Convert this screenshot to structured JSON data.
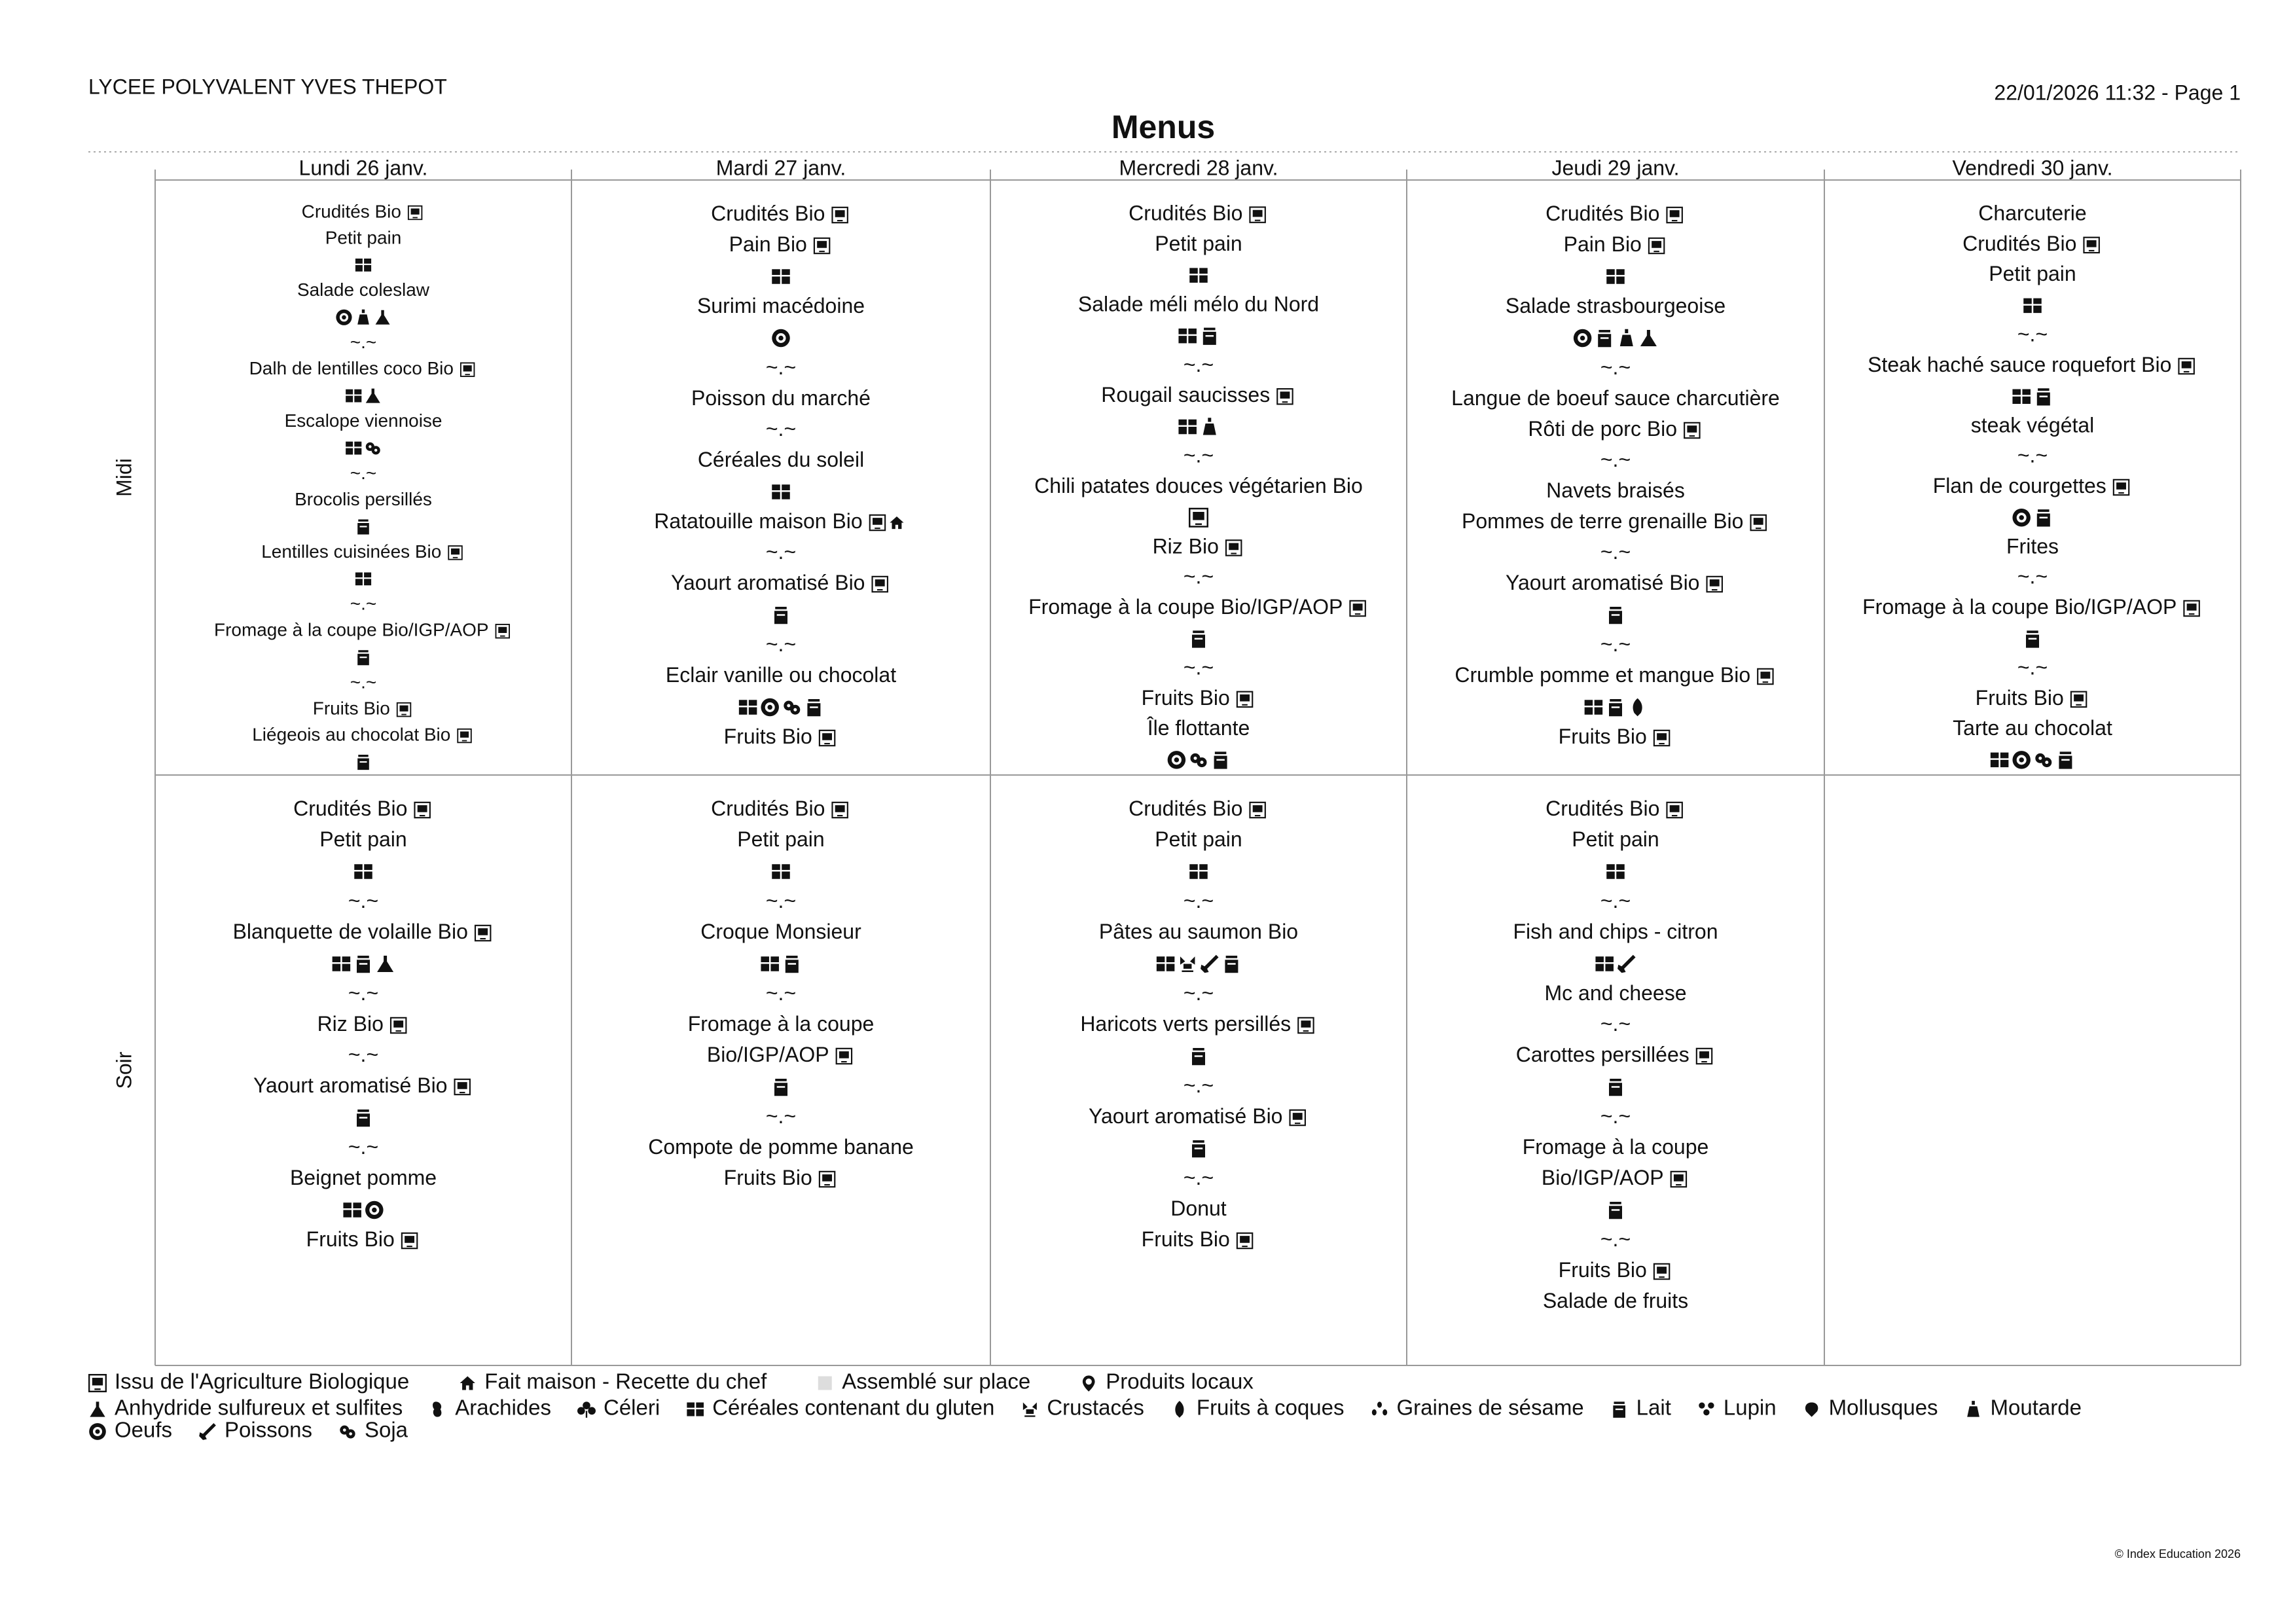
{
  "header": {
    "school": "LYCEE POLYVALENT YVES THEPOT",
    "date": "22/01/2026 11:32 - Page 1"
  },
  "title": "Menus",
  "days": [
    "Lundi 26 janv.",
    "Mardi 27 janv.",
    "Mercredi 28 janv.",
    "Jeudi 29 janv.",
    "Vendredi 30 janv."
  ],
  "meals": [
    {
      "label": "Midi",
      "cells": [
        [
          {
            "text": "Crudités Bio",
            "tags": [
              "bio"
            ]
          },
          "Petit pain",
          [
            "gluten"
          ],
          "Salade coleslaw",
          [
            "oeufs",
            "moutarde",
            "sulfites"
          ],
          "~.~",
          {
            "text": "Dalh de lentilles coco Bio",
            "tags": [
              "bio"
            ]
          },
          [
            "gluten",
            "sulfites"
          ],
          "Escalope viennoise",
          [
            "gluten",
            "soja"
          ],
          "~.~",
          "Brocolis persillés",
          [
            "lait"
          ],
          {
            "text": "Lentilles cuisinées Bio",
            "tags": [
              "bio"
            ]
          },
          [
            "gluten"
          ],
          "~.~",
          {
            "text": "Fromage à la coupe Bio/IGP/AOP",
            "tags": [
              "bio"
            ]
          },
          [
            "lait"
          ],
          "~.~",
          {
            "text": "Fruits Bio",
            "tags": [
              "bio"
            ]
          },
          {
            "text": "Liégeois au chocolat Bio",
            "tags": [
              "bio"
            ]
          },
          [
            "lait"
          ]
        ],
        [
          {
            "text": "Crudités Bio",
            "tags": [
              "bio"
            ]
          },
          {
            "text": "Pain Bio",
            "tags": [
              "bio"
            ]
          },
          [
            "gluten"
          ],
          "Surimi macédoine",
          [
            "oeufs"
          ],
          "~.~",
          "Poisson du marché",
          "~.~",
          "Céréales du soleil",
          [
            "gluten"
          ],
          {
            "text": "Ratatouille maison Bio",
            "tags": [
              "bio",
              "maison"
            ]
          },
          "~.~",
          {
            "text": "Yaourt aromatisé Bio",
            "tags": [
              "bio"
            ]
          },
          [
            "lait"
          ],
          "~.~",
          "Eclair vanille ou chocolat",
          [
            "gluten",
            "oeufs",
            "soja",
            "lait"
          ],
          {
            "text": "Fruits Bio",
            "tags": [
              "bio"
            ]
          }
        ],
        [
          {
            "text": "Crudités Bio",
            "tags": [
              "bio"
            ]
          },
          "Petit pain",
          [
            "gluten"
          ],
          "Salade méli mélo du Nord",
          [
            "gluten",
            "lait"
          ],
          "~.~",
          {
            "text": "Rougail saucisses",
            "tags": [
              "bio"
            ]
          },
          [
            "gluten",
            "moutarde"
          ],
          "~.~",
          "Chili patates douces végétarien Bio",
          [
            "bio"
          ],
          {
            "text": "Riz Bio",
            "tags": [
              "bio"
            ]
          },
          "~.~",
          {
            "text": "Fromage à la coupe Bio/IGP/AOP",
            "tags": [
              "bio"
            ]
          },
          [
            "lait"
          ],
          "~.~",
          {
            "text": "Fruits Bio",
            "tags": [
              "bio"
            ]
          },
          "Île flottante",
          [
            "oeufs",
            "soja",
            "lait"
          ]
        ],
        [
          {
            "text": "Crudités Bio",
            "tags": [
              "bio"
            ]
          },
          {
            "text": "Pain Bio",
            "tags": [
              "bio"
            ]
          },
          [
            "gluten"
          ],
          "Salade strasbourgeoise",
          [
            "oeufs",
            "lait",
            "moutarde",
            "sulfites"
          ],
          "~.~",
          "Langue de boeuf sauce charcutière",
          {
            "text": "Rôti de porc Bio",
            "tags": [
              "bio"
            ]
          },
          "~.~",
          "Navets braisés",
          {
            "text": "Pommes de terre grenaille Bio",
            "tags": [
              "bio"
            ]
          },
          "~.~",
          {
            "text": "Yaourt aromatisé Bio",
            "tags": [
              "bio"
            ]
          },
          [
            "lait"
          ],
          "~.~",
          {
            "text": "Crumble pomme et mangue Bio",
            "tags": [
              "bio"
            ]
          },
          [
            "gluten",
            "lait",
            "fruitscoques"
          ],
          {
            "text": "Fruits Bio",
            "tags": [
              "bio"
            ]
          }
        ],
        [
          "Charcuterie",
          {
            "text": "Crudités Bio",
            "tags": [
              "bio"
            ]
          },
          "Petit pain",
          [
            "gluten"
          ],
          "~.~",
          {
            "text": "Steak haché sauce roquefort Bio",
            "tags": [
              "bio"
            ]
          },
          [
            "gluten",
            "lait"
          ],
          "steak végétal",
          "~.~",
          {
            "text": "Flan de courgettes",
            "tags": [
              "bio"
            ]
          },
          [
            "oeufs",
            "lait"
          ],
          "Frites",
          "~.~",
          {
            "text": "Fromage à la coupe Bio/IGP/AOP",
            "tags": [
              "bio"
            ]
          },
          [
            "lait"
          ],
          "~.~",
          {
            "text": "Fruits Bio",
            "tags": [
              "bio"
            ]
          },
          "Tarte au chocolat",
          [
            "gluten",
            "oeufs",
            "soja",
            "lait"
          ]
        ]
      ]
    },
    {
      "label": "Soir",
      "cells": [
        [
          {
            "text": "Crudités Bio",
            "tags": [
              "bio"
            ]
          },
          "Petit pain",
          [
            "gluten"
          ],
          "~.~",
          {
            "text": "Blanquette de volaille Bio",
            "tags": [
              "bio"
            ]
          },
          [
            "gluten",
            "lait",
            "sulfites"
          ],
          "~.~",
          {
            "text": "Riz Bio",
            "tags": [
              "bio"
            ]
          },
          "~.~",
          {
            "text": "Yaourt aromatisé Bio",
            "tags": [
              "bio"
            ]
          },
          [
            "lait"
          ],
          "~.~",
          "Beignet pomme",
          [
            "gluten",
            "oeufs"
          ],
          {
            "text": "Fruits Bio",
            "tags": [
              "bio"
            ]
          }
        ],
        [
          {
            "text": "Crudités Bio",
            "tags": [
              "bio"
            ]
          },
          "Petit pain",
          [
            "gluten"
          ],
          "~.~",
          "Croque Monsieur",
          [
            "gluten",
            "lait"
          ],
          "~.~",
          "Fromage à la coupe",
          {
            "text": "Bio/IGP/AOP",
            "tags": [
              "bio"
            ]
          },
          [
            "lait"
          ],
          "~.~",
          "Compote de pomme banane",
          {
            "text": "Fruits Bio",
            "tags": [
              "bio"
            ]
          }
        ],
        [
          {
            "text": "Crudités Bio",
            "tags": [
              "bio"
            ]
          },
          "Petit pain",
          [
            "gluten"
          ],
          "~.~",
          "Pâtes au saumon Bio",
          [
            "gluten",
            "crustaces",
            "poissons",
            "lait"
          ],
          "~.~",
          {
            "text": "Haricots verts persillés",
            "tags": [
              "bio"
            ]
          },
          [
            "lait"
          ],
          "~.~",
          {
            "text": "Yaourt aromatisé Bio",
            "tags": [
              "bio"
            ]
          },
          [
            "lait"
          ],
          "~.~",
          "Donut",
          {
            "text": "Fruits Bio",
            "tags": [
              "bio"
            ]
          }
        ],
        [
          {
            "text": "Crudités Bio",
            "tags": [
              "bio"
            ]
          },
          "Petit pain",
          [
            "gluten"
          ],
          "~.~",
          "Fish and chips - citron",
          [
            "gluten",
            "poissons"
          ],
          "Mc and cheese",
          "~.~",
          {
            "text": "Carottes persillées",
            "tags": [
              "bio"
            ]
          },
          [
            "lait"
          ],
          "~.~",
          "Fromage à la coupe",
          {
            "text": "Bio/IGP/AOP",
            "tags": [
              "bio"
            ]
          },
          [
            "lait"
          ],
          "~.~",
          {
            "text": "Fruits Bio",
            "tags": [
              "bio"
            ]
          },
          "Salade de fruits"
        ],
        []
      ]
    }
  ],
  "legend": [
    [
      {
        "id": "bio",
        "label": "Issu de l'Agriculture Biologique"
      },
      {
        "id": "maison",
        "label": "Fait maison - Recette du chef"
      },
      {
        "id": "assemble",
        "label": "Assemblé sur place"
      },
      {
        "id": "locaux",
        "label": "Produits locaux"
      }
    ],
    [
      {
        "id": "sulfites",
        "label": "Anhydride sulfureux et sulfites"
      },
      {
        "id": "arachides",
        "label": "Arachides"
      },
      {
        "id": "celeri",
        "label": "Céleri"
      },
      {
        "id": "gluten",
        "label": "Céréales contenant du gluten"
      },
      {
        "id": "crustaces",
        "label": "Crustacés"
      },
      {
        "id": "fruitscoques",
        "label": "Fruits à coques"
      },
      {
        "id": "sesame",
        "label": "Graines de sésame"
      },
      {
        "id": "lait",
        "label": "Lait"
      },
      {
        "id": "lupin",
        "label": "Lupin"
      },
      {
        "id": "mollusques",
        "label": "Mollusques"
      },
      {
        "id": "moutarde",
        "label": "Moutarde"
      }
    ],
    [
      {
        "id": "oeufs",
        "label": "Oeufs"
      },
      {
        "id": "poissons",
        "label": "Poissons"
      },
      {
        "id": "soja",
        "label": "Soja"
      }
    ]
  ],
  "footer": "© Index Education 2026"
}
